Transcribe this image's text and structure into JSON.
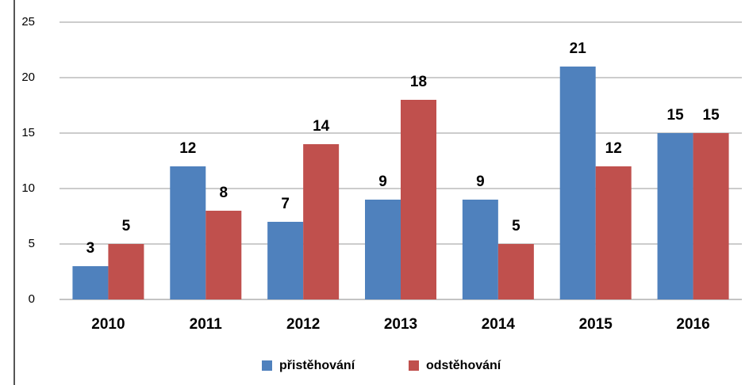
{
  "chart_data": {
    "type": "bar",
    "categories": [
      "2010",
      "2011",
      "2012",
      "2013",
      "2014",
      "2015",
      "2016"
    ],
    "series": [
      {
        "name": "přistěhování",
        "color": "#4f81bd",
        "values": [
          3,
          12,
          7,
          9,
          9,
          21,
          15
        ]
      },
      {
        "name": "odstěhování",
        "color": "#c0504d",
        "values": [
          5,
          8,
          14,
          18,
          5,
          12,
          15
        ]
      }
    ],
    "ylim": [
      0,
      25
    ],
    "yticks": [
      0,
      5,
      10,
      15,
      20,
      25
    ],
    "grid": true,
    "legend": "bottom"
  }
}
